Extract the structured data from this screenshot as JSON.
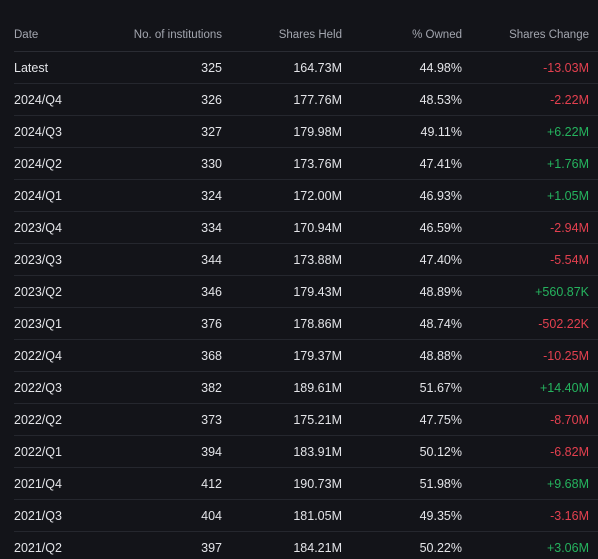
{
  "table": {
    "headers": {
      "date": "Date",
      "institutions": "No. of institutions",
      "shares_held": "Shares Held",
      "owned": "% Owned",
      "shares_change": "Shares Change"
    },
    "rows": [
      {
        "date": "Latest",
        "institutions": "325",
        "shares_held": "164.73M",
        "owned": "44.98%",
        "shares_change": "-13.03M",
        "direction": "neg"
      },
      {
        "date": "2024/Q4",
        "institutions": "326",
        "shares_held": "177.76M",
        "owned": "48.53%",
        "shares_change": "-2.22M",
        "direction": "neg"
      },
      {
        "date": "2024/Q3",
        "institutions": "327",
        "shares_held": "179.98M",
        "owned": "49.11%",
        "shares_change": "+6.22M",
        "direction": "pos"
      },
      {
        "date": "2024/Q2",
        "institutions": "330",
        "shares_held": "173.76M",
        "owned": "47.41%",
        "shares_change": "+1.76M",
        "direction": "pos"
      },
      {
        "date": "2024/Q1",
        "institutions": "324",
        "shares_held": "172.00M",
        "owned": "46.93%",
        "shares_change": "+1.05M",
        "direction": "pos"
      },
      {
        "date": "2023/Q4",
        "institutions": "334",
        "shares_held": "170.94M",
        "owned": "46.59%",
        "shares_change": "-2.94M",
        "direction": "neg"
      },
      {
        "date": "2023/Q3",
        "institutions": "344",
        "shares_held": "173.88M",
        "owned": "47.40%",
        "shares_change": "-5.54M",
        "direction": "neg"
      },
      {
        "date": "2023/Q2",
        "institutions": "346",
        "shares_held": "179.43M",
        "owned": "48.89%",
        "shares_change": "+560.87K",
        "direction": "pos"
      },
      {
        "date": "2023/Q1",
        "institutions": "376",
        "shares_held": "178.86M",
        "owned": "48.74%",
        "shares_change": "-502.22K",
        "direction": "neg"
      },
      {
        "date": "2022/Q4",
        "institutions": "368",
        "shares_held": "179.37M",
        "owned": "48.88%",
        "shares_change": "-10.25M",
        "direction": "neg"
      },
      {
        "date": "2022/Q3",
        "institutions": "382",
        "shares_held": "189.61M",
        "owned": "51.67%",
        "shares_change": "+14.40M",
        "direction": "pos"
      },
      {
        "date": "2022/Q2",
        "institutions": "373",
        "shares_held": "175.21M",
        "owned": "47.75%",
        "shares_change": "-8.70M",
        "direction": "neg"
      },
      {
        "date": "2022/Q1",
        "institutions": "394",
        "shares_held": "183.91M",
        "owned": "50.12%",
        "shares_change": "-6.82M",
        "direction": "neg"
      },
      {
        "date": "2021/Q4",
        "institutions": "412",
        "shares_held": "190.73M",
        "owned": "51.98%",
        "shares_change": "+9.68M",
        "direction": "pos"
      },
      {
        "date": "2021/Q3",
        "institutions": "404",
        "shares_held": "181.05M",
        "owned": "49.35%",
        "shares_change": "-3.16M",
        "direction": "neg"
      },
      {
        "date": "2021/Q2",
        "institutions": "397",
        "shares_held": "184.21M",
        "owned": "50.22%",
        "shares_change": "+3.06M",
        "direction": "pos"
      }
    ]
  },
  "colors": {
    "background": "#131419",
    "positive": "#25b35e",
    "negative": "#e3404f"
  }
}
